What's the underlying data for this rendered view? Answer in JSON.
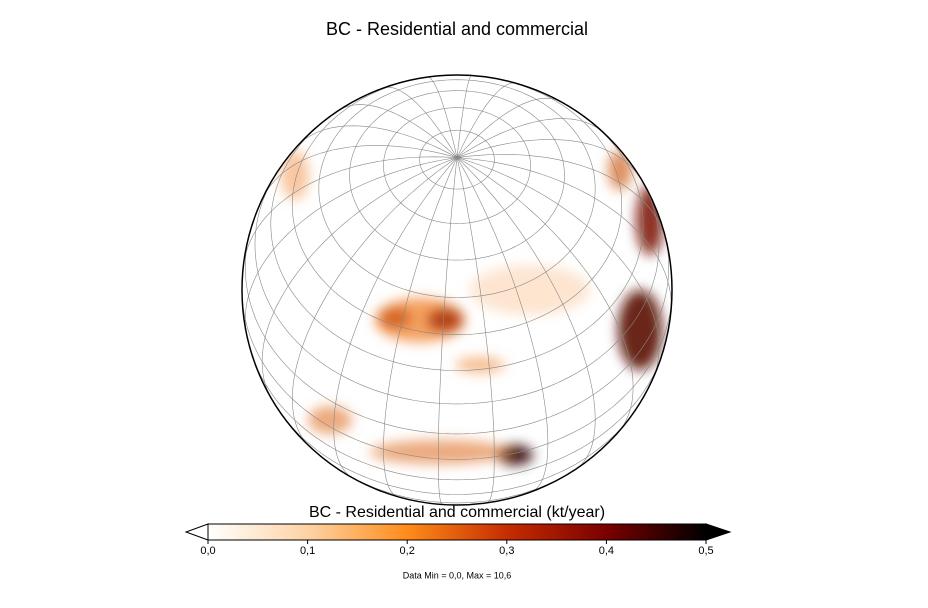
{
  "title": "BC - Residential and commercial",
  "colorbar": {
    "label": "BC - Residential and commercial (kt/year)",
    "lim": [
      0,
      0.5
    ],
    "ticks": [
      {
        "value": 0,
        "label": "0,0"
      },
      {
        "value": 0.1,
        "label": "0,1"
      },
      {
        "value": 0.2,
        "label": "0,2"
      },
      {
        "value": 0.3,
        "label": "0,3"
      },
      {
        "value": 0.4,
        "label": "0,4"
      },
      {
        "value": 0.5,
        "label": "0,5"
      }
    ],
    "colors": [
      "#ffffff",
      "#fdd3a6",
      "#ff8c1a",
      "#c62d00",
      "#7a0000",
      "#000000"
    ]
  },
  "footnote": "Data Min = 0,0, Max = 10,6"
}
